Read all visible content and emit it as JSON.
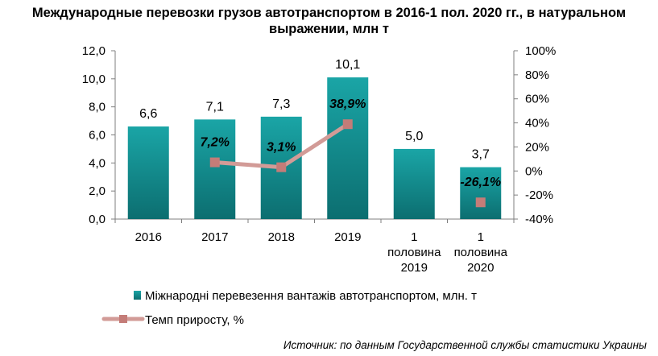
{
  "title_line1": "Международные перевозки грузов автотранспортом в 2016-1 пол. 2020 гг., в натуральном",
  "title_line2": "выражении, млн т",
  "source": "Источник: по данным Государственной службы статистики Украины",
  "colors": {
    "bar_top": "#1aa5a6",
    "bar_bottom": "#0c6e70",
    "line": "#d29b97",
    "marker": "#c47c78",
    "axis": "#7f7f7f"
  },
  "chart_data": {
    "type": "bar",
    "categories": [
      [
        "2016"
      ],
      [
        "2017"
      ],
      [
        "2018"
      ],
      [
        "2019"
      ],
      [
        "1",
        "половина",
        "2019"
      ],
      [
        "1",
        "половина",
        "2020"
      ]
    ],
    "ylim": [
      0,
      12
    ],
    "y_ticks": [
      "0,0",
      "2,0",
      "4,0",
      "6,0",
      "8,0",
      "10,0",
      "12,0"
    ],
    "y2lim": [
      -40,
      100
    ],
    "y2_ticks": [
      "-40%",
      "-20%",
      "0%",
      "20%",
      "40%",
      "60%",
      "80%",
      "100%"
    ],
    "legend_position": "bottom",
    "series": [
      {
        "name": "Міжнародні перевезення вантажів автотранспортом, млн. т",
        "type": "bar",
        "axis": "left",
        "values": [
          6.6,
          7.1,
          7.3,
          10.1,
          5.0,
          3.7
        ],
        "labels": [
          "6,6",
          "7,1",
          "7,3",
          "10,1",
          "5,0",
          "3,7"
        ]
      },
      {
        "name": "Темп приросту, %",
        "type": "line",
        "axis": "right",
        "values": [
          null,
          7.2,
          3.1,
          38.9,
          null,
          -26.1
        ],
        "labels": [
          "",
          "7,2%",
          "3,1%",
          "38,9%",
          "",
          "-26,1%"
        ]
      }
    ]
  }
}
